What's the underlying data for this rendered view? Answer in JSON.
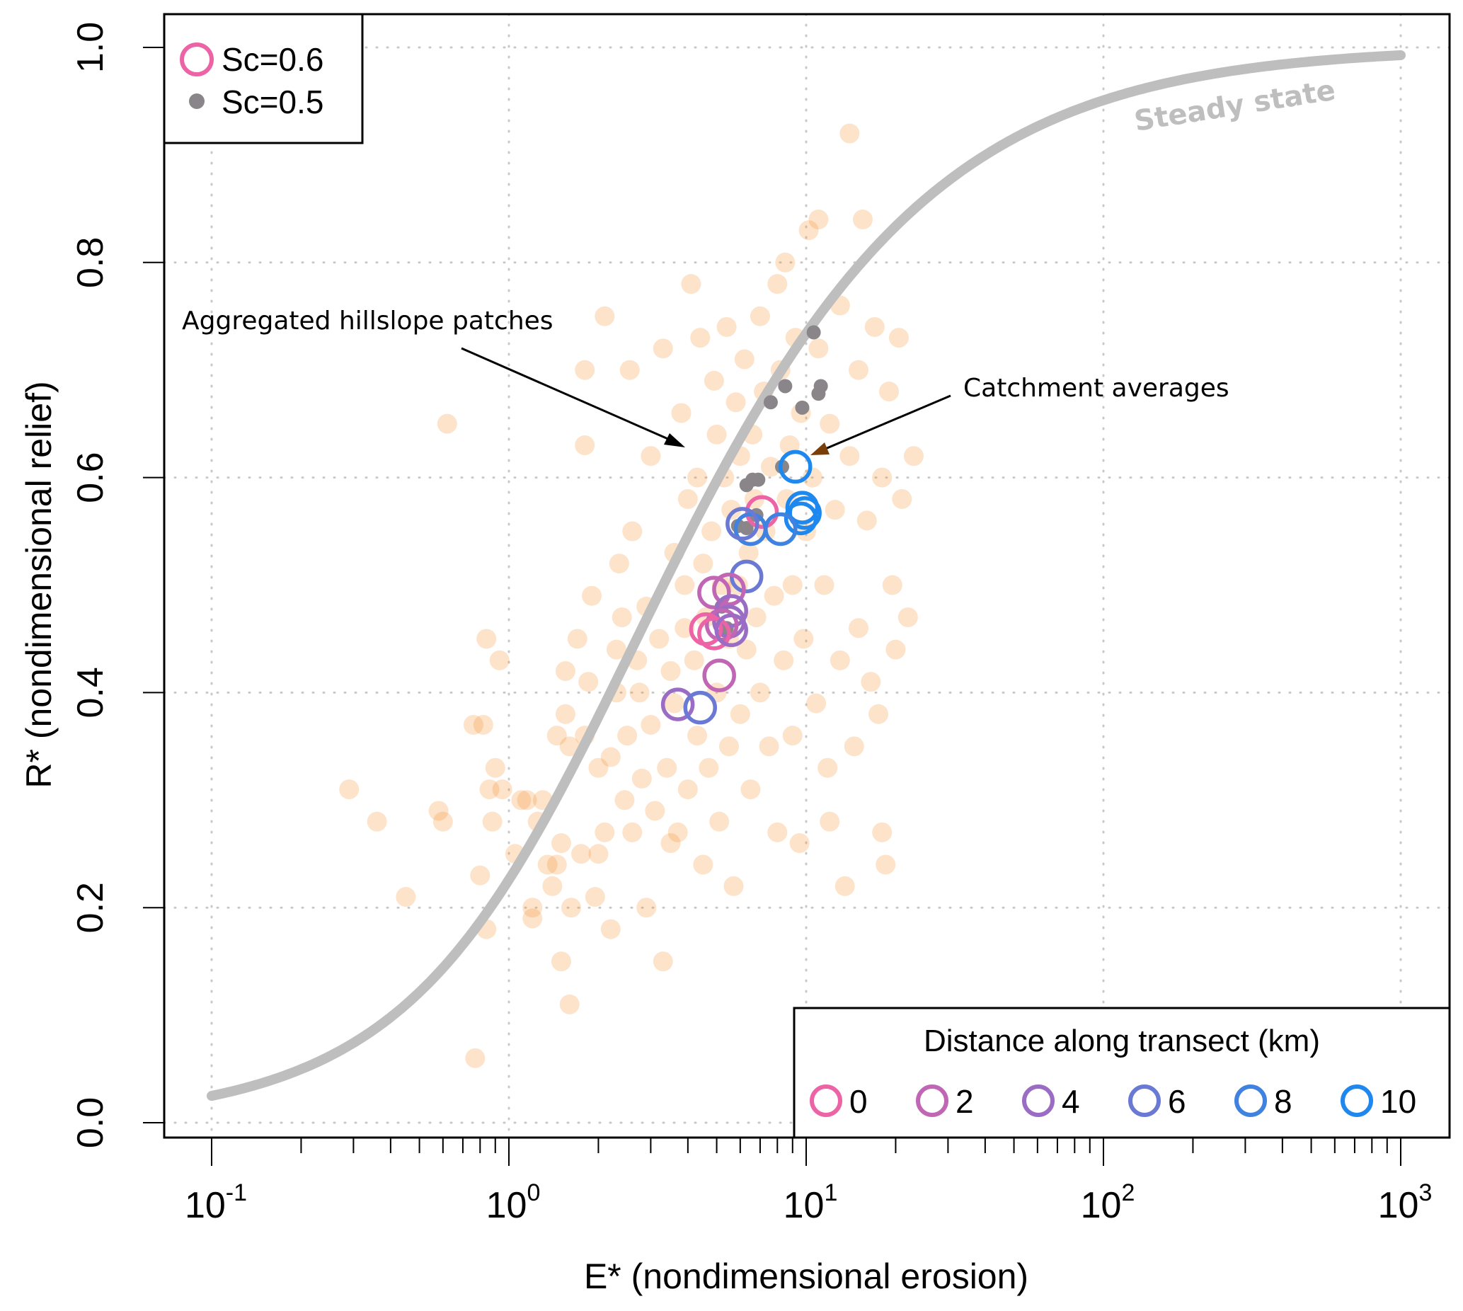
{
  "chart_data": {
    "type": "scatter",
    "xscale": "log",
    "xlabel": "E* (nondimensional erosion)",
    "ylabel": "R* (nondimensional relief)",
    "xlim": [
      0.07,
      1500
    ],
    "ylim": [
      -0.005,
      1.035
    ],
    "grid": true,
    "x_ticks": [
      {
        "value": 0.1,
        "base": "10",
        "exp": "-1"
      },
      {
        "value": 1,
        "base": "10",
        "exp": "0"
      },
      {
        "value": 10,
        "base": "10",
        "exp": "1"
      },
      {
        "value": 100,
        "base": "10",
        "exp": "2"
      },
      {
        "value": 1000,
        "base": "10",
        "exp": "3"
      }
    ],
    "y_ticks": [
      {
        "value": 0.0,
        "label": "0.0"
      },
      {
        "value": 0.2,
        "label": "0.2"
      },
      {
        "value": 0.4,
        "label": "0.4"
      },
      {
        "value": 0.6,
        "label": "0.6"
      },
      {
        "value": 0.8,
        "label": "0.8"
      },
      {
        "value": 1.0,
        "label": "1.0"
      }
    ],
    "steady_state": {
      "label": "Steady state",
      "color": "#bebebe",
      "x_range": [
        0.1,
        1000
      ],
      "formula": "R* = (1/E*)(sqrt(1+E*^2) - ln(0.5(1+sqrt(1+E*^2))) - 1)"
    },
    "annotations": [
      {
        "text": "Aggregated hillslope patches",
        "target": [
          4.3,
          0.63
        ]
      },
      {
        "text": "Catchment averages",
        "target": [
          10.3,
          0.62
        ]
      }
    ],
    "legend_sc": {
      "position": "top-left",
      "items": [
        {
          "label": "Sc=0.6",
          "marker": "open-circle",
          "color": "#ec64a6"
        },
        {
          "label": "Sc=0.5",
          "marker": "filled-dot",
          "color": "#8a8589"
        }
      ]
    },
    "legend_distance": {
      "position": "bottom-right",
      "title": "Distance along transect (km)",
      "items": [
        {
          "label": "0",
          "color": "#ec64a6"
        },
        {
          "label": "2",
          "color": "#c066b4"
        },
        {
          "label": "4",
          "color": "#9a6cc4"
        },
        {
          "label": "6",
          "color": "#6a7ad4"
        },
        {
          "label": "8",
          "color": "#3f82e0"
        },
        {
          "label": "10",
          "color": "#1e88ee"
        }
      ]
    },
    "series": [
      {
        "name": "Aggregated hillslope patches",
        "color": "#f28e2b",
        "opacity": 0.25,
        "points": [
          [
            0.29,
            0.31
          ],
          [
            0.36,
            0.28
          ],
          [
            0.45,
            0.21
          ],
          [
            0.58,
            0.29
          ],
          [
            0.6,
            0.28
          ],
          [
            0.62,
            0.65
          ],
          [
            0.76,
            0.37
          ],
          [
            0.77,
            0.06
          ],
          [
            0.8,
            0.23
          ],
          [
            0.82,
            0.37
          ],
          [
            0.84,
            0.18
          ],
          [
            0.84,
            0.45
          ],
          [
            0.86,
            0.31
          ],
          [
            0.88,
            0.28
          ],
          [
            0.9,
            0.33
          ],
          [
            0.93,
            0.43
          ],
          [
            0.95,
            0.31
          ],
          [
            1.05,
            0.25
          ],
          [
            1.1,
            0.3
          ],
          [
            1.15,
            0.3
          ],
          [
            1.2,
            0.2
          ],
          [
            1.2,
            0.19
          ],
          [
            1.25,
            0.28
          ],
          [
            1.3,
            0.3
          ],
          [
            1.35,
            0.24
          ],
          [
            1.4,
            0.22
          ],
          [
            1.45,
            0.36
          ],
          [
            1.45,
            0.24
          ],
          [
            1.5,
            0.15
          ],
          [
            1.5,
            0.26
          ],
          [
            1.55,
            0.38
          ],
          [
            1.55,
            0.42
          ],
          [
            1.6,
            0.35
          ],
          [
            1.6,
            0.11
          ],
          [
            1.62,
            0.2
          ],
          [
            1.7,
            0.45
          ],
          [
            1.75,
            0.25
          ],
          [
            1.8,
            0.63
          ],
          [
            1.8,
            0.36
          ],
          [
            1.8,
            0.7
          ],
          [
            1.85,
            0.41
          ],
          [
            1.9,
            0.49
          ],
          [
            1.95,
            0.21
          ],
          [
            2.0,
            0.25
          ],
          [
            2.0,
            0.33
          ],
          [
            2.1,
            0.75
          ],
          [
            2.1,
            0.27
          ],
          [
            2.2,
            0.18
          ],
          [
            2.2,
            0.34
          ],
          [
            2.3,
            0.4
          ],
          [
            2.3,
            0.44
          ],
          [
            2.35,
            0.52
          ],
          [
            2.4,
            0.47
          ],
          [
            2.45,
            0.3
          ],
          [
            2.5,
            0.36
          ],
          [
            2.55,
            0.7
          ],
          [
            2.6,
            0.27
          ],
          [
            2.6,
            0.55
          ],
          [
            2.7,
            0.43
          ],
          [
            2.75,
            0.4
          ],
          [
            2.8,
            0.32
          ],
          [
            2.9,
            0.48
          ],
          [
            2.9,
            0.2
          ],
          [
            3.0,
            0.37
          ],
          [
            3.0,
            0.62
          ],
          [
            3.1,
            0.29
          ],
          [
            3.2,
            0.45
          ],
          [
            3.3,
            0.72
          ],
          [
            3.3,
            0.15
          ],
          [
            3.4,
            0.33
          ],
          [
            3.5,
            0.42
          ],
          [
            3.5,
            0.26
          ],
          [
            3.6,
            0.53
          ],
          [
            3.6,
            0.39
          ],
          [
            3.7,
            0.27
          ],
          [
            3.8,
            0.66
          ],
          [
            3.9,
            0.46
          ],
          [
            3.9,
            0.5
          ],
          [
            4.0,
            0.31
          ],
          [
            4.0,
            0.58
          ],
          [
            4.1,
            0.78
          ],
          [
            4.2,
            0.43
          ],
          [
            4.3,
            0.36
          ],
          [
            4.3,
            0.6
          ],
          [
            4.4,
            0.73
          ],
          [
            4.5,
            0.52
          ],
          [
            4.5,
            0.24
          ],
          [
            4.6,
            0.47
          ],
          [
            4.7,
            0.33
          ],
          [
            4.8,
            0.55
          ],
          [
            4.9,
            0.69
          ],
          [
            5.0,
            0.4
          ],
          [
            5.0,
            0.64
          ],
          [
            5.1,
            0.28
          ],
          [
            5.2,
            0.5
          ],
          [
            5.3,
            0.6
          ],
          [
            5.4,
            0.74
          ],
          [
            5.5,
            0.35
          ],
          [
            5.5,
            0.45
          ],
          [
            5.6,
            0.57
          ],
          [
            5.7,
            0.22
          ],
          [
            5.8,
            0.67
          ],
          [
            5.9,
            0.5
          ],
          [
            6.0,
            0.38
          ],
          [
            6.0,
            0.62
          ],
          [
            6.2,
            0.71
          ],
          [
            6.3,
            0.44
          ],
          [
            6.4,
            0.53
          ],
          [
            6.5,
            0.31
          ],
          [
            6.6,
            0.64
          ],
          [
            6.7,
            0.58
          ],
          [
            6.8,
            0.47
          ],
          [
            7.0,
            0.75
          ],
          [
            7.0,
            0.4
          ],
          [
            7.2,
            0.68
          ],
          [
            7.3,
            0.55
          ],
          [
            7.5,
            0.35
          ],
          [
            7.6,
            0.61
          ],
          [
            7.8,
            0.49
          ],
          [
            8.0,
            0.78
          ],
          [
            8.0,
            0.27
          ],
          [
            8.2,
            0.7
          ],
          [
            8.4,
            0.43
          ],
          [
            8.5,
            0.8
          ],
          [
            8.6,
            0.58
          ],
          [
            8.8,
            0.63
          ],
          [
            9.0,
            0.5
          ],
          [
            9.0,
            0.36
          ],
          [
            9.2,
            0.73
          ],
          [
            9.5,
            0.26
          ],
          [
            9.6,
            0.66
          ],
          [
            9.8,
            0.45
          ],
          [
            10.0,
            0.55
          ],
          [
            10.2,
            0.83
          ],
          [
            10.5,
            0.6
          ],
          [
            10.8,
            0.39
          ],
          [
            11.0,
            0.72
          ],
          [
            11.0,
            0.84
          ],
          [
            11.5,
            0.5
          ],
          [
            11.8,
            0.33
          ],
          [
            12.0,
            0.65
          ],
          [
            12.0,
            0.28
          ],
          [
            12.5,
            0.57
          ],
          [
            13.0,
            0.76
          ],
          [
            13.0,
            0.43
          ],
          [
            13.5,
            0.22
          ],
          [
            14.0,
            0.92
          ],
          [
            14.0,
            0.62
          ],
          [
            14.5,
            0.35
          ],
          [
            15.0,
            0.7
          ],
          [
            15.0,
            0.46
          ],
          [
            15.5,
            0.84
          ],
          [
            16.0,
            0.56
          ],
          [
            16.5,
            0.41
          ],
          [
            17.0,
            0.74
          ],
          [
            17.5,
            0.38
          ],
          [
            18.0,
            0.6
          ],
          [
            18.0,
            0.27
          ],
          [
            18.5,
            0.24
          ],
          [
            19.0,
            0.68
          ],
          [
            19.5,
            0.5
          ],
          [
            20.0,
            0.44
          ],
          [
            20.5,
            0.73
          ],
          [
            21.0,
            0.58
          ],
          [
            22.0,
            0.47
          ],
          [
            23.0,
            0.62
          ]
        ]
      },
      {
        "name": "Sc=0.5 catchment averages",
        "color": "#8a8589",
        "points": [
          [
            10.6,
            0.735
          ],
          [
            8.5,
            0.685
          ],
          [
            11.2,
            0.685
          ],
          [
            7.6,
            0.67
          ],
          [
            9.7,
            0.665
          ],
          [
            11.0,
            0.678
          ],
          [
            8.3,
            0.61
          ],
          [
            6.9,
            0.598
          ],
          [
            6.3,
            0.593
          ],
          [
            6.6,
            0.598
          ],
          [
            5.9,
            0.555
          ],
          [
            6.3,
            0.553
          ],
          [
            6.8,
            0.565
          ],
          [
            5.4,
            0.46
          ],
          [
            5.2,
            0.48
          ]
        ]
      },
      {
        "name": "Sc=0.6 catchment averages",
        "marker": "open-circle",
        "points": [
          {
            "x": 9.2,
            "y": 0.61,
            "km": 10
          },
          {
            "x": 9.7,
            "y": 0.572,
            "km": 10
          },
          {
            "x": 9.6,
            "y": 0.562,
            "km": 10
          },
          {
            "x": 9.9,
            "y": 0.567,
            "km": 10
          },
          {
            "x": 7.1,
            "y": 0.568,
            "km": 0
          },
          {
            "x": 6.5,
            "y": 0.552,
            "km": 8
          },
          {
            "x": 8.2,
            "y": 0.552,
            "km": 8
          },
          {
            "x": 6.1,
            "y": 0.557,
            "km": 6
          },
          {
            "x": 6.3,
            "y": 0.508,
            "km": 6
          },
          {
            "x": 4.9,
            "y": 0.493,
            "km": 2
          },
          {
            "x": 5.5,
            "y": 0.496,
            "km": 2
          },
          {
            "x": 5.6,
            "y": 0.476,
            "km": 4
          },
          {
            "x": 5.5,
            "y": 0.466,
            "km": 4
          },
          {
            "x": 5.2,
            "y": 0.463,
            "km": 2
          },
          {
            "x": 4.6,
            "y": 0.459,
            "km": 0
          },
          {
            "x": 4.9,
            "y": 0.455,
            "km": 0
          },
          {
            "x": 5.6,
            "y": 0.458,
            "km": 4
          },
          {
            "x": 5.1,
            "y": 0.416,
            "km": 2
          },
          {
            "x": 3.7,
            "y": 0.389,
            "km": 4
          },
          {
            "x": 4.4,
            "y": 0.386,
            "km": 6
          }
        ]
      }
    ]
  }
}
